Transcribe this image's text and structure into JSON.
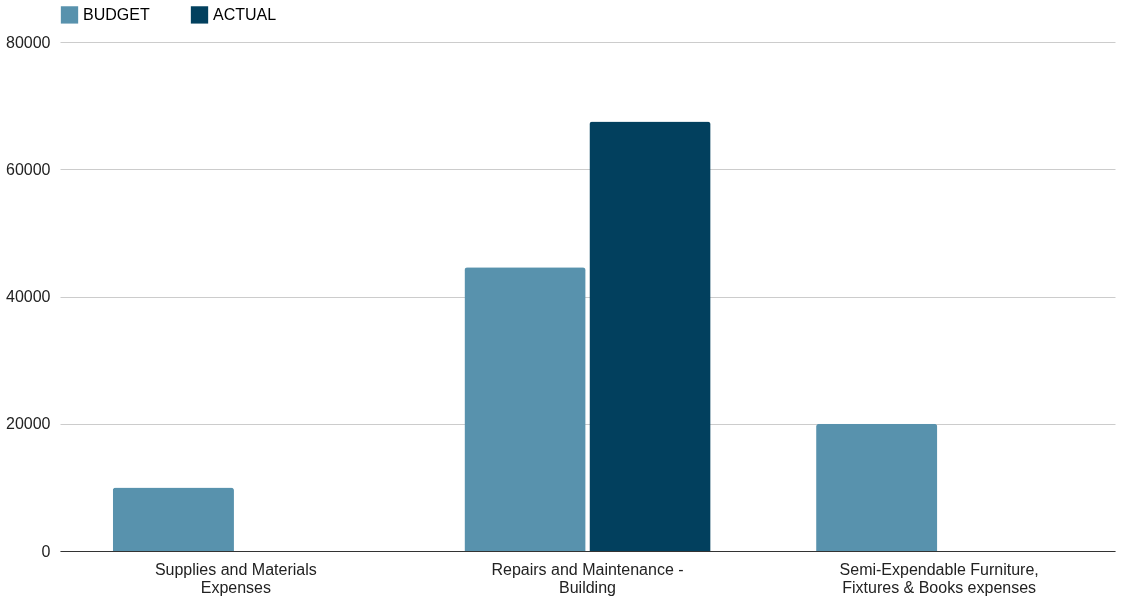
{
  "chart_data": {
    "type": "bar",
    "categories": [
      "Supplies and Materials Expenses",
      "Repairs and Maintenance - Building",
      "Semi-Expendable Furniture, Fixtures & Books expenses"
    ],
    "series": [
      {
        "name": "BUDGET",
        "color": "#5892ad",
        "values": [
          10000,
          44600,
          20000
        ]
      },
      {
        "name": "ACTUAL",
        "color": "#02405e",
        "values": [
          null,
          67500,
          null
        ]
      }
    ],
    "ylim": [
      0,
      80000
    ],
    "yticks": [
      0,
      20000,
      40000,
      60000,
      80000
    ],
    "grid": "y",
    "legend": "top"
  }
}
